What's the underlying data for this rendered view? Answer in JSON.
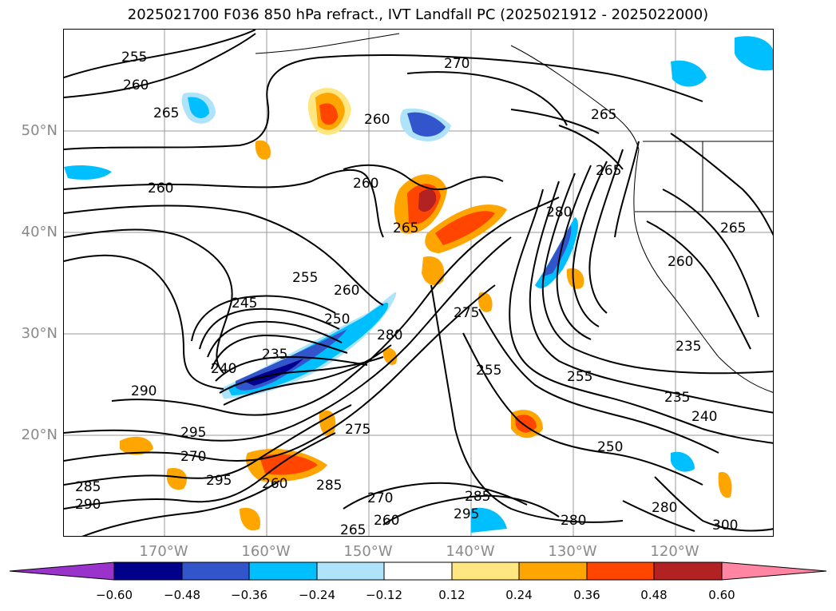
{
  "title": "2025021700 F036 850 hPa refract., IVT Landfall PC (2025021912 - 2025022000)",
  "axes": {
    "lat_labels": [
      "50°N",
      "40°N",
      "30°N",
      "20°N"
    ],
    "lon_labels": [
      "170°W",
      "160°W",
      "150°W",
      "140°W",
      "130°W",
      "120°W"
    ]
  },
  "colorbar": {
    "ticks": [
      "−0.60",
      "−0.48",
      "−0.36",
      "−0.24",
      "−0.12",
      "0.12",
      "0.24",
      "0.36",
      "0.48",
      "0.60"
    ],
    "colors": [
      "#9933cc",
      "#00008b",
      "#3355cc",
      "#00bfff",
      "#aee3fa",
      "#ffffff",
      "#ffe680",
      "#ffa500",
      "#ff4500",
      "#b22222",
      "#ff85a2"
    ],
    "extend": "both"
  },
  "contour_labels": [
    "255",
    "260",
    "265",
    "270",
    "260",
    "260",
    "265",
    "260",
    "280",
    "265",
    "255",
    "245",
    "260",
    "250",
    "235",
    "240",
    "280",
    "275",
    "290",
    "295",
    "270",
    "255",
    "235",
    "255",
    "235",
    "240",
    "250",
    "275",
    "285",
    "260",
    "295",
    "285",
    "290",
    "270",
    "265",
    "260",
    "285",
    "295",
    "280",
    "280",
    "300",
    "260",
    "265",
    "265"
  ],
  "shading_colors": {
    "neg_light": "#aee3fa",
    "neg_mid": "#00bfff",
    "neg_strong": "#3355cc",
    "neg_max": "#00008b",
    "pos_light": "#ffe680",
    "pos_mid": "#ffa500",
    "pos_strong": "#ff4500",
    "pos_max": "#b22222"
  }
}
